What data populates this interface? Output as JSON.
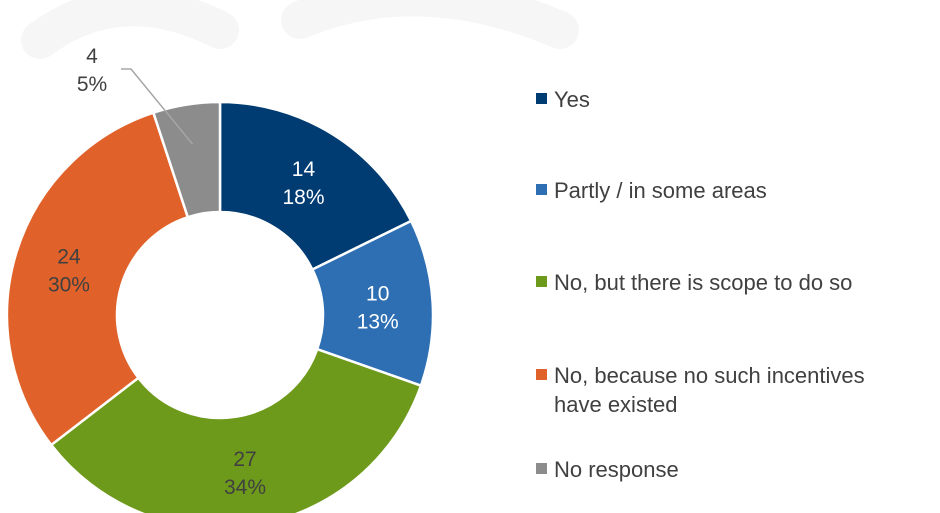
{
  "chart_data": {
    "type": "pie",
    "style": "donut",
    "title": "",
    "categories": [
      "Yes",
      "Partly / in some areas",
      "No, but there is scope to do so",
      "No, because no such incentives have existed",
      "No response"
    ],
    "legend_lines": [
      [
        "Yes"
      ],
      [
        "Partly / in some areas"
      ],
      [
        "No, but there is scope to do so"
      ],
      [
        "No, because no such incentives",
        "have existed"
      ],
      [
        "No response"
      ]
    ],
    "values": [
      14,
      10,
      27,
      24,
      4
    ],
    "percent_labels": [
      "18%",
      "13%",
      "34%",
      "30%",
      "5%"
    ],
    "colors": [
      "#003b71",
      "#2e6fb4",
      "#6e9a1b",
      "#e0622a",
      "#8c8c8c"
    ],
    "label_colors": [
      "#ffffff",
      "#ffffff",
      "#404040",
      "#404040",
      "#404040"
    ],
    "legend_position": "right"
  }
}
